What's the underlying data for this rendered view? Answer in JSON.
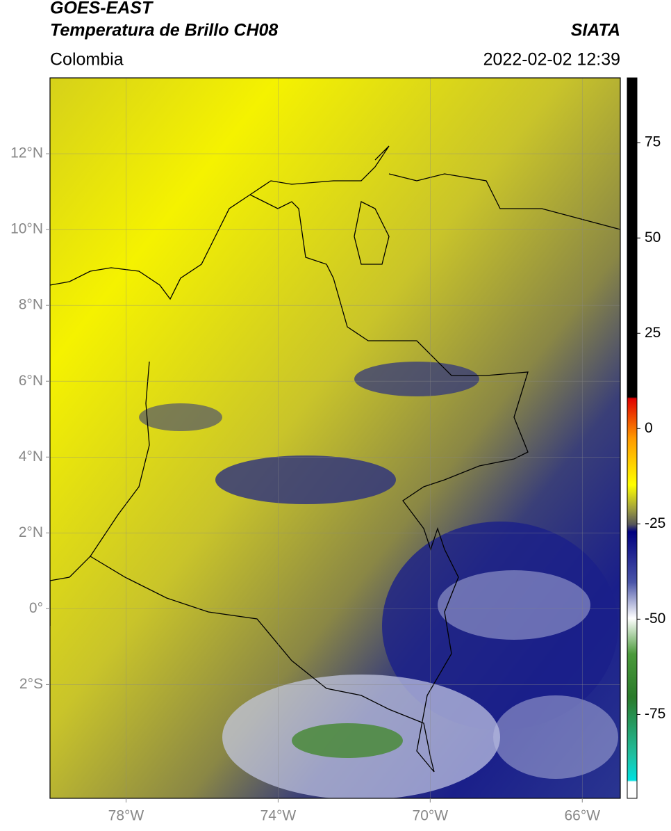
{
  "header": {
    "source": "GOES-EAST",
    "title": "Temperatura de Brillo CH08",
    "org": "SIATA",
    "region": "Colombia",
    "datetime": "2022-02-02 12:39"
  },
  "map": {
    "xlim": [
      -80,
      -65
    ],
    "ylim": [
      -5,
      14
    ],
    "xticks": [
      {
        "value": -78,
        "label": "78°W"
      },
      {
        "value": -74,
        "label": "74°W"
      },
      {
        "value": -70,
        "label": "70°W"
      },
      {
        "value": -66,
        "label": "66°W"
      }
    ],
    "yticks": [
      {
        "value": 12,
        "label": "12°N"
      },
      {
        "value": 10,
        "label": "10°N"
      },
      {
        "value": 8,
        "label": "8°N"
      },
      {
        "value": 6,
        "label": "6°N"
      },
      {
        "value": 4,
        "label": "4°N"
      },
      {
        "value": 2,
        "label": "2°N"
      },
      {
        "value": 0,
        "label": "0°"
      },
      {
        "value": -2,
        "label": "2°S"
      }
    ],
    "grid": true
  },
  "colorbar": {
    "lim": [
      -97,
      92
    ],
    "ticks": [
      75,
      50,
      25,
      0,
      -25,
      -50,
      -75
    ]
  }
}
